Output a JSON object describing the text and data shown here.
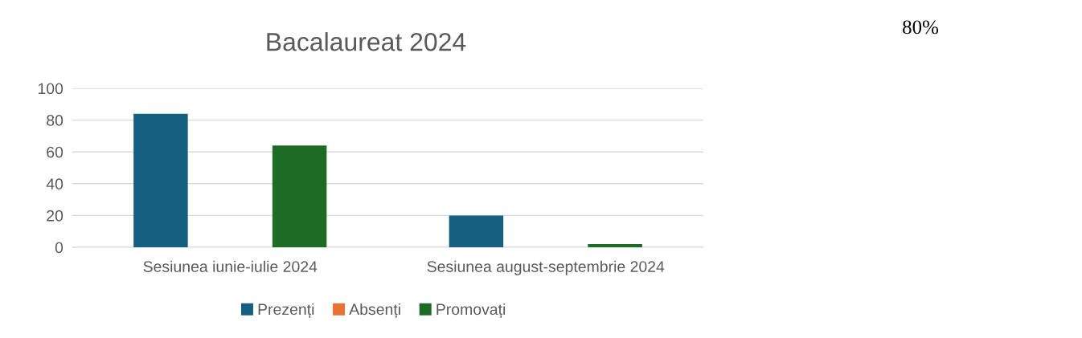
{
  "chart_data": {
    "type": "bar",
    "title": "Bacalaureat 2024",
    "categories": [
      "Sesiunea iunie-iulie 2024",
      "Sesiunea august-septembrie 2024"
    ],
    "series": [
      {
        "name": "Prezenți",
        "color": "#175f80",
        "values": [
          84,
          20
        ]
      },
      {
        "name": "Absenți",
        "color": "#e97132",
        "values": [
          0,
          0
        ]
      },
      {
        "name": "Promovați",
        "color": "#1d6b25",
        "values": [
          64,
          2
        ]
      }
    ],
    "ylim": [
      0,
      100
    ],
    "yticks": [
      0,
      20,
      40,
      60,
      80,
      100
    ],
    "grid": "y",
    "legend": "bottom",
    "annotations": [
      "80%"
    ]
  }
}
